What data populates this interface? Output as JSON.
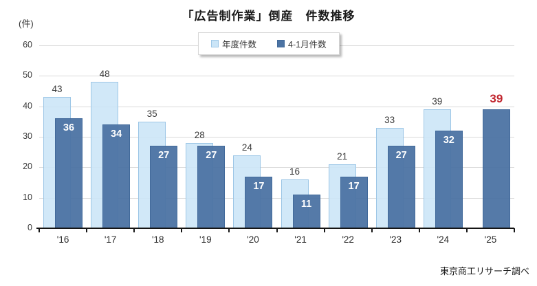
{
  "title": "「広告制作業」倒産　件数推移",
  "unit_label": "(件)",
  "legend": {
    "items": [
      {
        "label": "年度件数",
        "color": "#cbe5f7",
        "border": "#9cc6e6"
      },
      {
        "label": "4-1月件数",
        "color": "#4c73a3",
        "border": "#41699a"
      }
    ]
  },
  "footer": {
    "source": "東京商工リサーチ調べ"
  },
  "colors": {
    "annual_bar_fill": "#cbe5f7",
    "annual_bar_border": "#9cc6e6",
    "period_bar_fill": "#4c73a3",
    "gridline": "#d9d9d9",
    "axis": "#151515",
    "value_label": "#3a3a3a",
    "bar_inner_label": "#ffffff",
    "highlight_label": "#c0232c"
  },
  "chart_data": {
    "type": "bar",
    "title": "「広告制作業」倒産　件数推移",
    "ylabel": "(件)",
    "ylim": [
      0,
      60
    ],
    "yticks": [
      0,
      10,
      20,
      30,
      40,
      50,
      60
    ],
    "grid": true,
    "legend_position": "top",
    "categories": [
      "'16",
      "'17",
      "'18",
      "'19",
      "'20",
      "'21",
      "'22",
      "'23",
      "'24",
      "'25"
    ],
    "series": [
      {
        "name": "年度件数",
        "values": [
          43,
          48,
          35,
          28,
          24,
          16,
          21,
          33,
          39,
          null
        ]
      },
      {
        "name": "4-1月件数",
        "values": [
          36,
          34,
          27,
          27,
          17,
          11,
          17,
          27,
          32,
          39
        ]
      }
    ],
    "highlight": {
      "category": "'25",
      "series": "4-1月件数",
      "value": 39,
      "label_color": "#c0232c"
    },
    "source": "東京商工リサーチ調べ"
  }
}
